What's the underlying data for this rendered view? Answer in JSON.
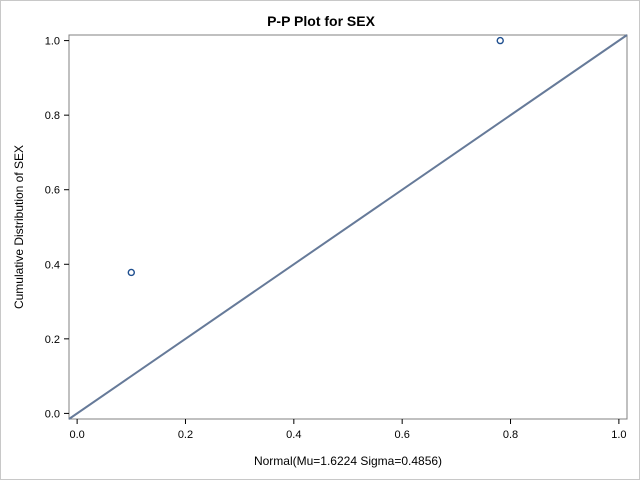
{
  "chart_data": {
    "type": "scatter",
    "title": "P-P Plot for SEX",
    "xlabel": "Normal(Mu=1.6224 Sigma=0.4856)",
    "ylabel": "Cumulative Distribution of SEX",
    "xlim": [
      -0.015,
      1.015
    ],
    "ylim": [
      -0.015,
      1.015
    ],
    "xticks": [
      "0.0",
      "0.2",
      "0.4",
      "0.6",
      "0.8",
      "1.0"
    ],
    "yticks": [
      "0.0",
      "0.2",
      "0.4",
      "0.6",
      "0.8",
      "1.0"
    ],
    "grid": false,
    "points": [
      {
        "x": 0.1,
        "y": 0.378
      },
      {
        "x": 0.781,
        "y": 1.0
      }
    ],
    "reference_line": {
      "from": [
        -0.015,
        -0.015
      ],
      "to": [
        1.015,
        1.015
      ]
    },
    "colors": {
      "line": "#667a99",
      "marker": "#1f4f8f",
      "frame": "#808080"
    }
  }
}
